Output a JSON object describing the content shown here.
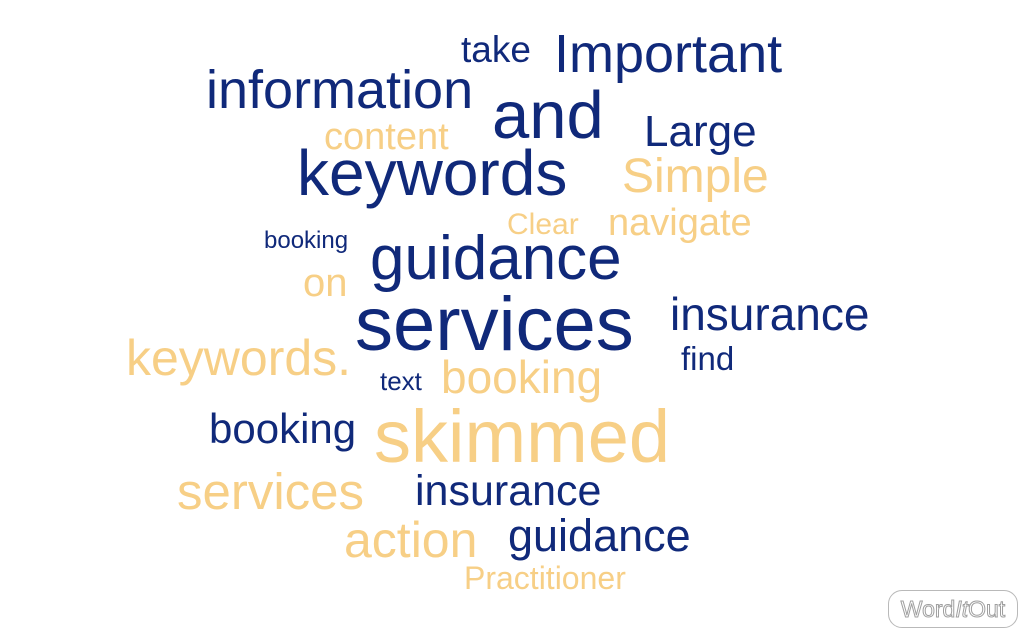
{
  "colors": {
    "primary": "#10297a",
    "secondary": "#f7cf86"
  },
  "words": [
    {
      "id": "take",
      "text": "take",
      "color": "dark"
    },
    {
      "id": "important",
      "text": "Important",
      "color": "dark"
    },
    {
      "id": "information",
      "text": "information",
      "color": "dark"
    },
    {
      "id": "and",
      "text": "and",
      "color": "dark"
    },
    {
      "id": "content",
      "text": "content",
      "color": "light"
    },
    {
      "id": "large",
      "text": "Large",
      "color": "dark"
    },
    {
      "id": "keywords-1",
      "text": "keywords",
      "color": "dark"
    },
    {
      "id": "simple",
      "text": "Simple",
      "color": "light"
    },
    {
      "id": "clear",
      "text": "Clear",
      "color": "light"
    },
    {
      "id": "navigate",
      "text": "navigate",
      "color": "light"
    },
    {
      "id": "booking-1",
      "text": "booking",
      "color": "dark"
    },
    {
      "id": "guidance-1",
      "text": "guidance",
      "color": "dark"
    },
    {
      "id": "on",
      "text": "on",
      "color": "light"
    },
    {
      "id": "services-1",
      "text": "services",
      "color": "dark"
    },
    {
      "id": "insurance-1",
      "text": "insurance",
      "color": "dark"
    },
    {
      "id": "keywords-2",
      "text": "keywords.",
      "color": "light"
    },
    {
      "id": "find",
      "text": "find",
      "color": "dark"
    },
    {
      "id": "text",
      "text": "text",
      "color": "dark"
    },
    {
      "id": "booking-2",
      "text": "booking",
      "color": "light"
    },
    {
      "id": "booking-3",
      "text": "booking",
      "color": "dark"
    },
    {
      "id": "skimmed",
      "text": "skimmed",
      "color": "light"
    },
    {
      "id": "services-2",
      "text": "services",
      "color": "light"
    },
    {
      "id": "insurance-2",
      "text": "insurance",
      "color": "dark"
    },
    {
      "id": "action",
      "text": "action",
      "color": "light"
    },
    {
      "id": "guidance-2",
      "text": "guidance",
      "color": "dark"
    },
    {
      "id": "practitioner",
      "text": "Practitioner",
      "color": "light"
    }
  ],
  "logo": {
    "part1": "Word",
    "part2": "It",
    "part3": "Out"
  }
}
